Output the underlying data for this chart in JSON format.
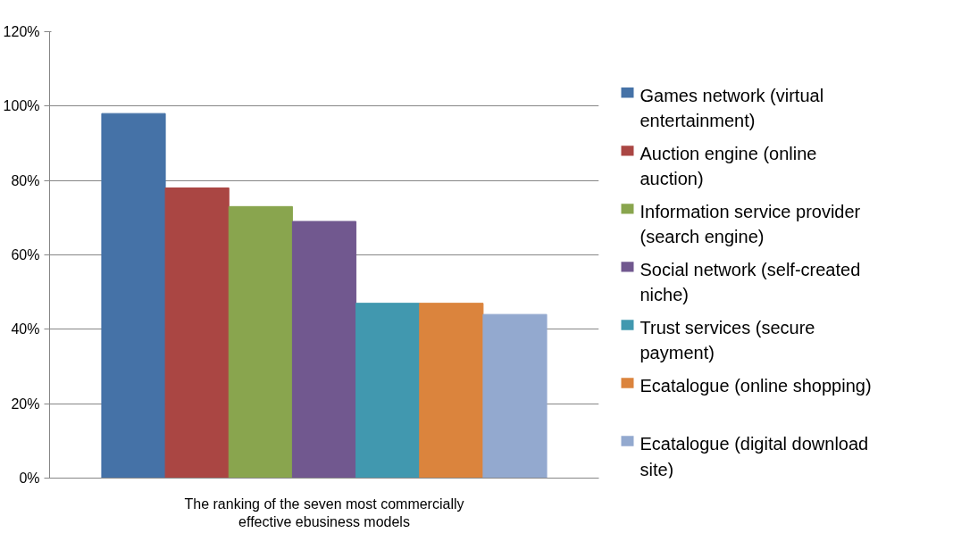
{
  "chart_data": {
    "type": "bar",
    "categories": [
      "The ranking of the seven most commercially effective ebusiness models"
    ],
    "series": [
      {
        "name": "Games network (virtual entertainment)",
        "color": "#4572a7",
        "values": [
          98
        ]
      },
      {
        "name": "Auction engine (online auction)",
        "color": "#aa4643",
        "values": [
          78
        ]
      },
      {
        "name": "Information service provider (search engine)",
        "color": "#89a54e",
        "values": [
          73
        ]
      },
      {
        "name": "Social network (self-created niche)",
        "color": "#71588f",
        "values": [
          69
        ]
      },
      {
        "name": "Trust services (secure payment)",
        "color": "#4198af",
        "values": [
          47
        ]
      },
      {
        "name": "Ecatalogue (online shopping)",
        "color": "#db843d",
        "values": [
          47
        ]
      },
      {
        "name": "Ecatalogue (digital download site)",
        "color": "#93a9cf",
        "values": [
          44
        ]
      }
    ],
    "ylim": [
      0,
      120
    ],
    "yticks": [
      {
        "value": 0,
        "label": "0%"
      },
      {
        "value": 20,
        "label": "20%"
      },
      {
        "value": 40,
        "label": "40%"
      },
      {
        "value": 60,
        "label": "60%"
      },
      {
        "value": 80,
        "label": "80%"
      },
      {
        "value": 100,
        "label": "100%"
      },
      {
        "value": 120,
        "label": "120%"
      }
    ],
    "grid": "y",
    "legend": "right"
  }
}
